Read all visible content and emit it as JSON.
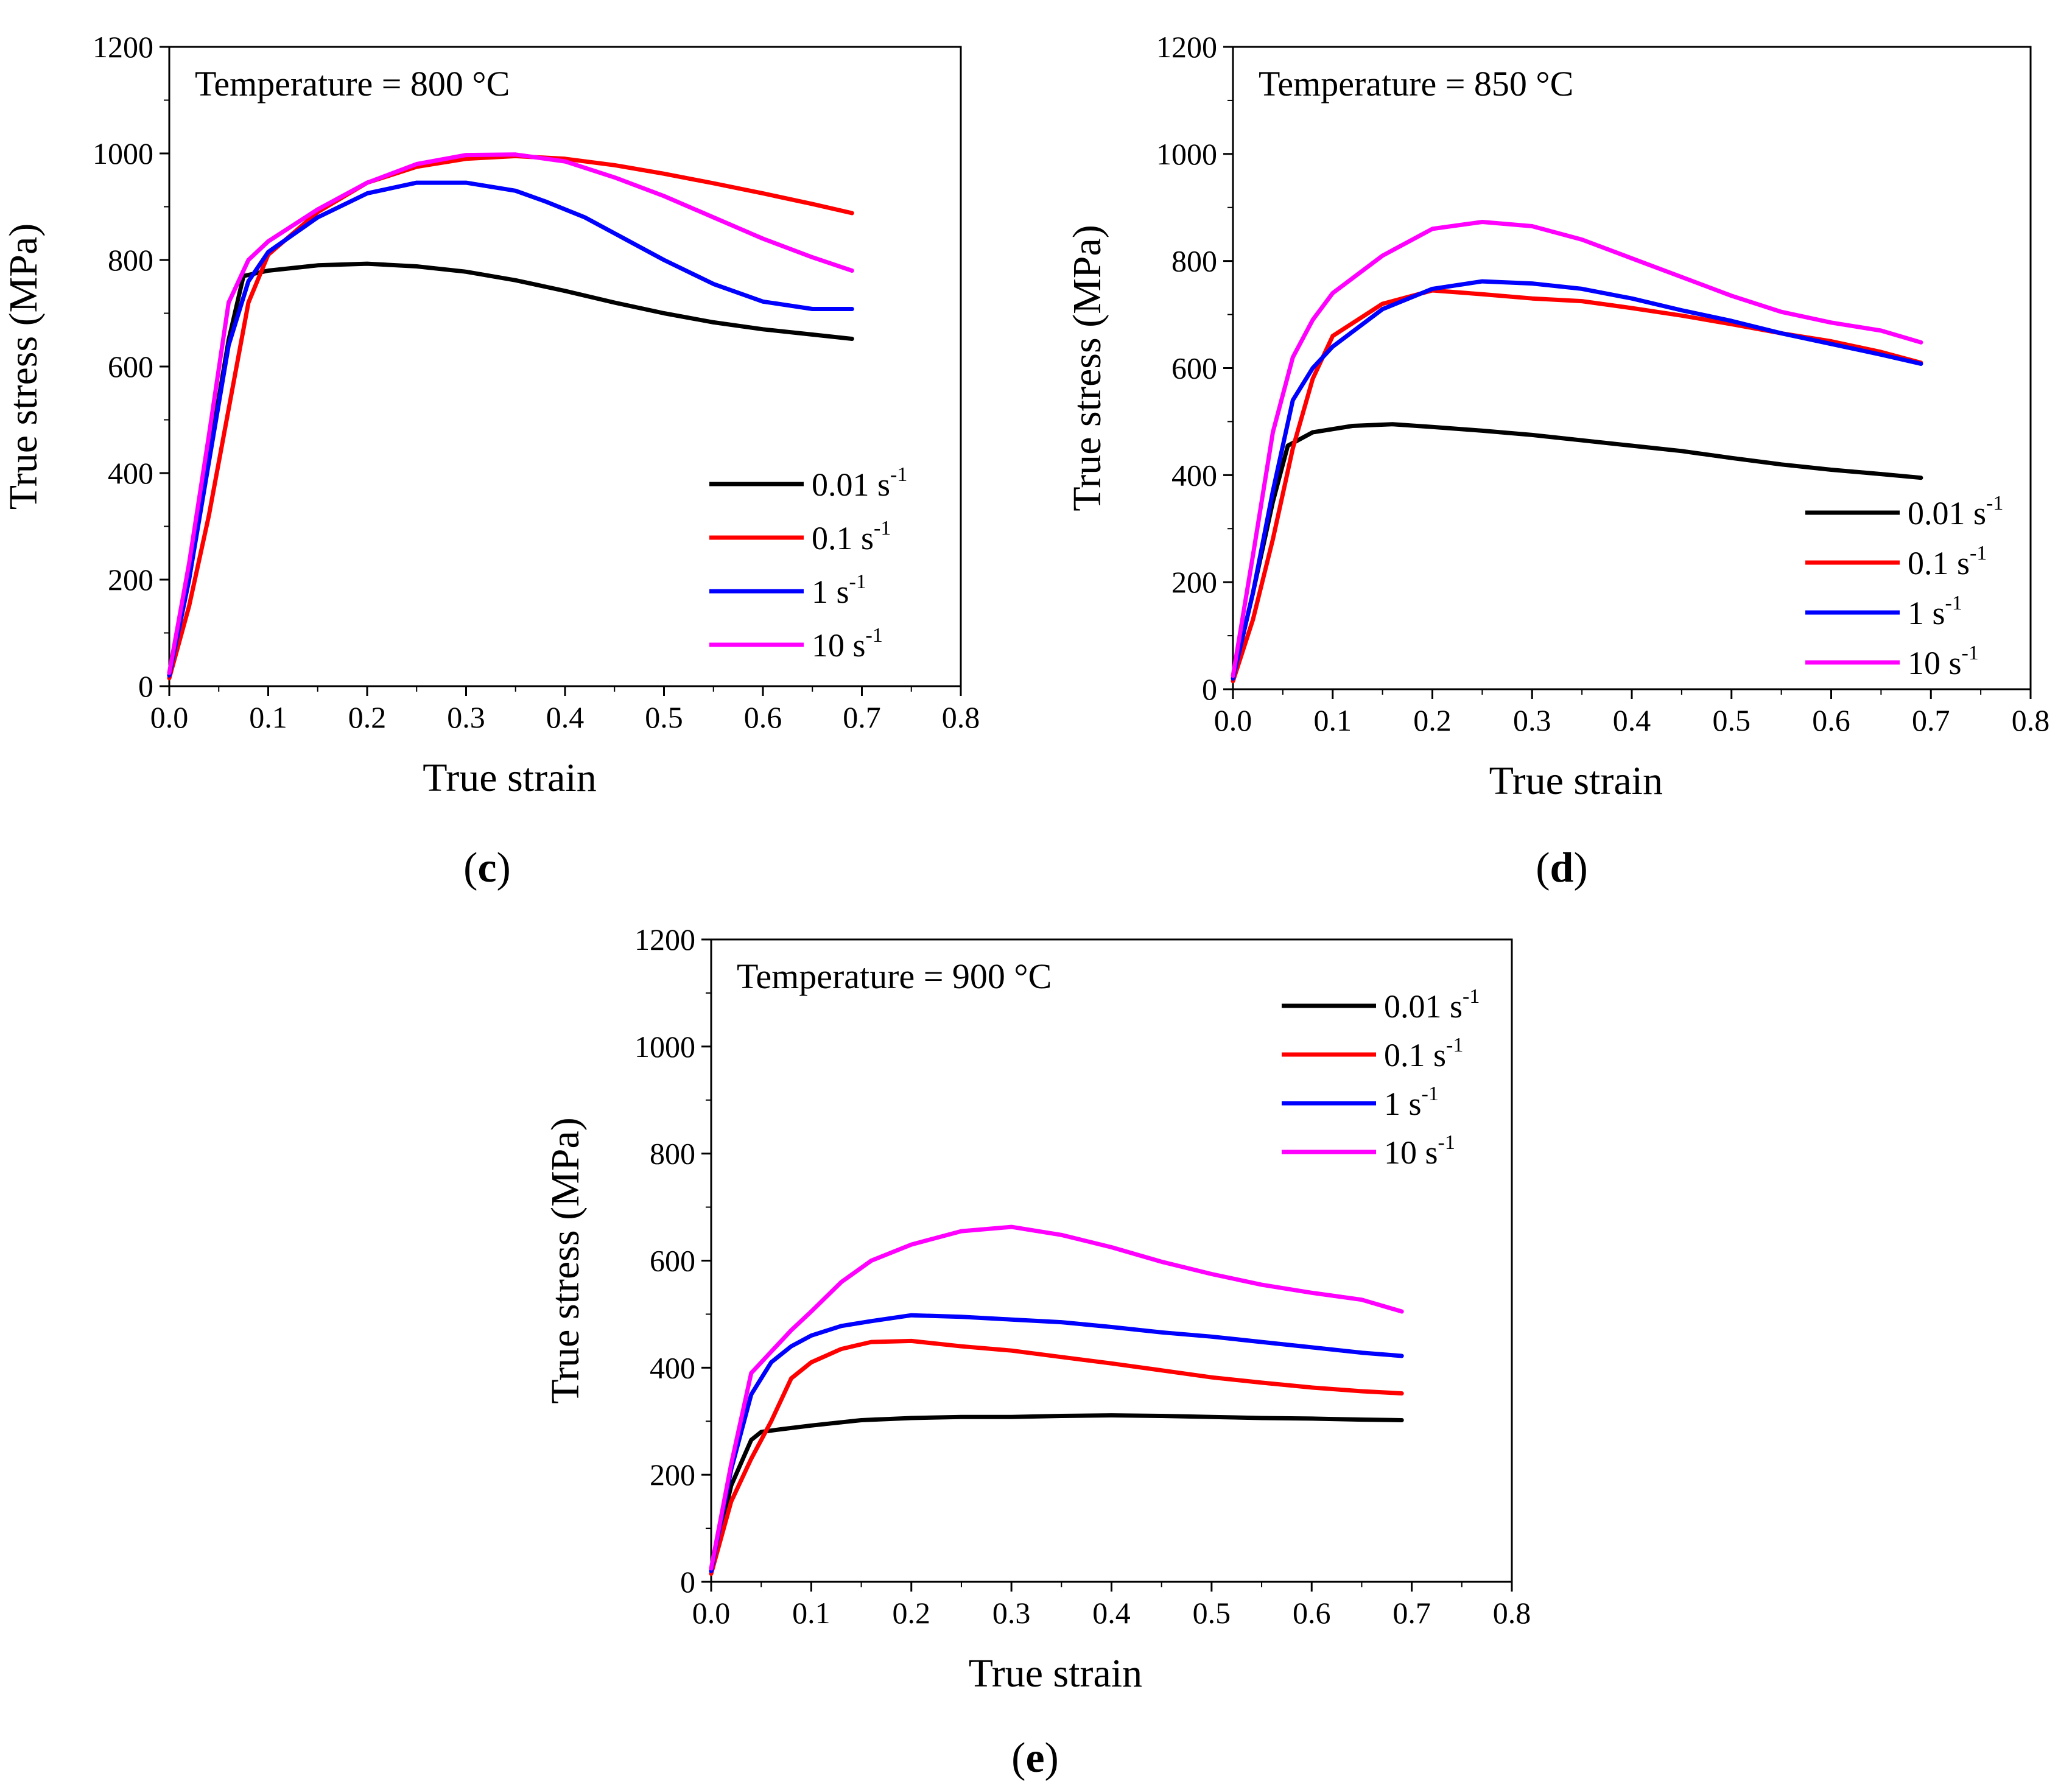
{
  "figure": {
    "panels": [
      {
        "id": "c",
        "label_open": "(",
        "label_letter": "c",
        "label_close": ")"
      },
      {
        "id": "d",
        "label_open": "(",
        "label_letter": "d",
        "label_close": ")"
      },
      {
        "id": "e",
        "label_open": "(",
        "label_letter": "e",
        "label_close": ")"
      }
    ]
  },
  "chart_data": [
    {
      "type": "line",
      "panel": "c",
      "annotation": "Temperature = 800 °C",
      "xlabel": "True strain",
      "ylabel": "True stress (MPa)",
      "xlim": [
        0.0,
        0.8
      ],
      "ylim": [
        0,
        1200
      ],
      "xticks": [
        "0.0",
        "0.1",
        "0.2",
        "0.3",
        "0.4",
        "0.5",
        "0.6",
        "0.7",
        "0.8"
      ],
      "yticks": [
        "0",
        "200",
        "400",
        "600",
        "800",
        "1000",
        "1200"
      ],
      "legend_position": "lower-right",
      "series": [
        {
          "name": "0.01 s",
          "sup": "-1",
          "color": "#000000",
          "x": [
            0,
            0.02,
            0.04,
            0.06,
            0.075,
            0.1,
            0.15,
            0.2,
            0.25,
            0.3,
            0.35,
            0.4,
            0.45,
            0.5,
            0.55,
            0.6,
            0.65,
            0.69
          ],
          "y": [
            20,
            200,
            430,
            650,
            770,
            780,
            790,
            793,
            788,
            778,
            762,
            742,
            720,
            700,
            683,
            670,
            660,
            652
          ]
        },
        {
          "name": "0.1 s",
          "sup": "-1",
          "color": "#ff0000",
          "x": [
            0,
            0.02,
            0.04,
            0.06,
            0.08,
            0.1,
            0.15,
            0.2,
            0.25,
            0.3,
            0.35,
            0.4,
            0.45,
            0.5,
            0.55,
            0.6,
            0.65,
            0.69
          ],
          "y": [
            15,
            150,
            320,
            520,
            720,
            810,
            890,
            945,
            975,
            990,
            995,
            990,
            978,
            962,
            944,
            925,
            905,
            888
          ]
        },
        {
          "name": "1 s",
          "sup": "-1",
          "color": "#0000ff",
          "x": [
            0,
            0.02,
            0.04,
            0.06,
            0.08,
            0.1,
            0.15,
            0.2,
            0.25,
            0.3,
            0.35,
            0.38,
            0.42,
            0.46,
            0.5,
            0.55,
            0.6,
            0.65,
            0.69
          ],
          "y": [
            20,
            200,
            420,
            640,
            760,
            815,
            880,
            925,
            945,
            945,
            930,
            910,
            880,
            840,
            800,
            755,
            722,
            708,
            708
          ]
        },
        {
          "name": "10 s",
          "sup": "-1",
          "color": "#ff00ff",
          "x": [
            0,
            0.02,
            0.04,
            0.06,
            0.08,
            0.1,
            0.15,
            0.2,
            0.25,
            0.3,
            0.35,
            0.4,
            0.45,
            0.5,
            0.55,
            0.6,
            0.65,
            0.69
          ],
          "y": [
            25,
            230,
            470,
            720,
            800,
            835,
            895,
            945,
            980,
            997,
            998,
            985,
            955,
            920,
            880,
            840,
            805,
            780
          ]
        }
      ]
    },
    {
      "type": "line",
      "panel": "d",
      "annotation": "Temperature = 850 °C",
      "xlabel": "True strain",
      "ylabel": "True stress (MPa)",
      "xlim": [
        0.0,
        0.8
      ],
      "ylim": [
        0,
        1200
      ],
      "xticks": [
        "0.0",
        "0.1",
        "0.2",
        "0.3",
        "0.4",
        "0.5",
        "0.6",
        "0.7",
        "0.8"
      ],
      "yticks": [
        "0",
        "200",
        "400",
        "600",
        "800",
        "1000",
        "1200"
      ],
      "legend_position": "lower-right",
      "series": [
        {
          "name": "0.01 s",
          "sup": "-1",
          "color": "#000000",
          "x": [
            0,
            0.02,
            0.04,
            0.055,
            0.08,
            0.12,
            0.16,
            0.2,
            0.25,
            0.3,
            0.35,
            0.4,
            0.45,
            0.5,
            0.55,
            0.6,
            0.65,
            0.69
          ],
          "y": [
            20,
            180,
            350,
            455,
            480,
            492,
            495,
            490,
            483,
            475,
            465,
            455,
            445,
            432,
            420,
            410,
            402,
            395
          ]
        },
        {
          "name": "0.1 s",
          "sup": "-1",
          "color": "#ff0000",
          "x": [
            0,
            0.02,
            0.04,
            0.06,
            0.08,
            0.1,
            0.15,
            0.2,
            0.25,
            0.3,
            0.35,
            0.4,
            0.45,
            0.5,
            0.55,
            0.6,
            0.65,
            0.69
          ],
          "y": [
            15,
            130,
            280,
            450,
            580,
            660,
            720,
            745,
            738,
            730,
            725,
            712,
            698,
            682,
            665,
            650,
            630,
            610
          ]
        },
        {
          "name": "1 s",
          "sup": "-1",
          "color": "#0000ff",
          "x": [
            0,
            0.02,
            0.04,
            0.06,
            0.08,
            0.1,
            0.15,
            0.2,
            0.25,
            0.3,
            0.35,
            0.4,
            0.45,
            0.5,
            0.55,
            0.6,
            0.65,
            0.69
          ],
          "y": [
            20,
            180,
            370,
            540,
            600,
            640,
            710,
            748,
            762,
            758,
            748,
            730,
            708,
            688,
            665,
            645,
            625,
            608
          ]
        },
        {
          "name": "10 s",
          "sup": "-1",
          "color": "#ff00ff",
          "x": [
            0,
            0.02,
            0.04,
            0.06,
            0.08,
            0.1,
            0.15,
            0.2,
            0.25,
            0.3,
            0.35,
            0.4,
            0.45,
            0.5,
            0.55,
            0.6,
            0.65,
            0.69
          ],
          "y": [
            25,
            250,
            480,
            620,
            690,
            740,
            810,
            860,
            873,
            865,
            840,
            805,
            770,
            735,
            705,
            685,
            670,
            648
          ]
        }
      ]
    },
    {
      "type": "line",
      "panel": "e",
      "annotation": "Temperature = 900 °C",
      "xlabel": "True strain",
      "ylabel": "True stress (MPa)",
      "xlim": [
        0.0,
        0.8
      ],
      "ylim": [
        0,
        1200
      ],
      "xticks": [
        "0.0",
        "0.1",
        "0.2",
        "0.3",
        "0.4",
        "0.5",
        "0.6",
        "0.7",
        "0.8"
      ],
      "yticks": [
        "0",
        "200",
        "400",
        "600",
        "800",
        "1000",
        "1200"
      ],
      "legend_position": "upper-right",
      "series": [
        {
          "name": "0.01 s",
          "sup": "-1",
          "color": "#000000",
          "x": [
            0,
            0.02,
            0.04,
            0.05,
            0.07,
            0.1,
            0.15,
            0.2,
            0.25,
            0.3,
            0.35,
            0.4,
            0.45,
            0.5,
            0.55,
            0.6,
            0.65,
            0.69
          ],
          "y": [
            20,
            180,
            265,
            280,
            285,
            292,
            302,
            306,
            308,
            308,
            310,
            311,
            310,
            308,
            306,
            305,
            303,
            302
          ]
        },
        {
          "name": "0.1 s",
          "sup": "-1",
          "color": "#ff0000",
          "x": [
            0,
            0.02,
            0.04,
            0.06,
            0.08,
            0.1,
            0.13,
            0.16,
            0.2,
            0.25,
            0.3,
            0.35,
            0.4,
            0.45,
            0.5,
            0.55,
            0.6,
            0.65,
            0.69
          ],
          "y": [
            15,
            150,
            230,
            300,
            380,
            410,
            435,
            448,
            450,
            440,
            432,
            420,
            408,
            395,
            382,
            372,
            363,
            356,
            352
          ]
        },
        {
          "name": "1 s",
          "sup": "-1",
          "color": "#0000ff",
          "x": [
            0,
            0.02,
            0.04,
            0.06,
            0.08,
            0.1,
            0.13,
            0.16,
            0.2,
            0.25,
            0.3,
            0.35,
            0.4,
            0.45,
            0.5,
            0.55,
            0.6,
            0.65,
            0.69
          ],
          "y": [
            20,
            210,
            350,
            410,
            440,
            460,
            478,
            487,
            498,
            495,
            490,
            485,
            476,
            466,
            458,
            448,
            438,
            428,
            422
          ]
        },
        {
          "name": "10 s",
          "sup": "-1",
          "color": "#ff00ff",
          "x": [
            0,
            0.02,
            0.04,
            0.06,
            0.08,
            0.1,
            0.13,
            0.16,
            0.2,
            0.25,
            0.3,
            0.35,
            0.4,
            0.45,
            0.5,
            0.55,
            0.6,
            0.65,
            0.69
          ],
          "y": [
            25,
            220,
            390,
            430,
            470,
            505,
            560,
            600,
            630,
            655,
            663,
            648,
            625,
            598,
            575,
            555,
            540,
            527,
            505
          ]
        }
      ]
    }
  ]
}
